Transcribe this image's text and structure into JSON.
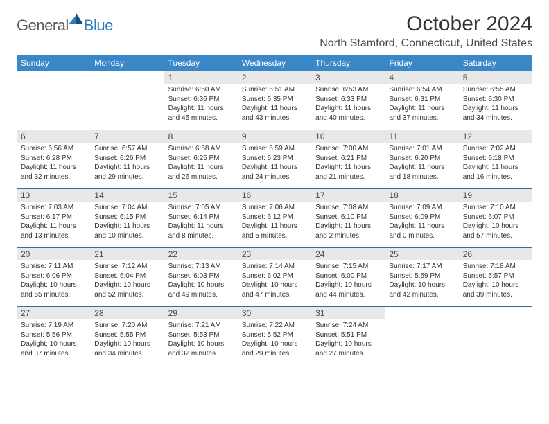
{
  "brand": {
    "word1": "General",
    "word2": "Blue"
  },
  "title": "October 2024",
  "location": "North Stamford, Connecticut, United States",
  "colors": {
    "header_bg": "#3a87c8",
    "header_text": "#ffffff",
    "daynum_bg": "#e8e8e8",
    "rule": "#3a6a95",
    "brand_gray": "#555b61",
    "brand_blue": "#2f7bbf",
    "body_text": "#333333"
  },
  "day_names": [
    "Sunday",
    "Monday",
    "Tuesday",
    "Wednesday",
    "Thursday",
    "Friday",
    "Saturday"
  ],
  "weeks": [
    [
      null,
      null,
      {
        "n": "1",
        "sr": "Sunrise: 6:50 AM",
        "ss": "Sunset: 6:36 PM",
        "dl": "Daylight: 11 hours and 45 minutes."
      },
      {
        "n": "2",
        "sr": "Sunrise: 6:51 AM",
        "ss": "Sunset: 6:35 PM",
        "dl": "Daylight: 11 hours and 43 minutes."
      },
      {
        "n": "3",
        "sr": "Sunrise: 6:53 AM",
        "ss": "Sunset: 6:33 PM",
        "dl": "Daylight: 11 hours and 40 minutes."
      },
      {
        "n": "4",
        "sr": "Sunrise: 6:54 AM",
        "ss": "Sunset: 6:31 PM",
        "dl": "Daylight: 11 hours and 37 minutes."
      },
      {
        "n": "5",
        "sr": "Sunrise: 6:55 AM",
        "ss": "Sunset: 6:30 PM",
        "dl": "Daylight: 11 hours and 34 minutes."
      }
    ],
    [
      {
        "n": "6",
        "sr": "Sunrise: 6:56 AM",
        "ss": "Sunset: 6:28 PM",
        "dl": "Daylight: 11 hours and 32 minutes."
      },
      {
        "n": "7",
        "sr": "Sunrise: 6:57 AM",
        "ss": "Sunset: 6:26 PM",
        "dl": "Daylight: 11 hours and 29 minutes."
      },
      {
        "n": "8",
        "sr": "Sunrise: 6:58 AM",
        "ss": "Sunset: 6:25 PM",
        "dl": "Daylight: 11 hours and 26 minutes."
      },
      {
        "n": "9",
        "sr": "Sunrise: 6:59 AM",
        "ss": "Sunset: 6:23 PM",
        "dl": "Daylight: 11 hours and 24 minutes."
      },
      {
        "n": "10",
        "sr": "Sunrise: 7:00 AM",
        "ss": "Sunset: 6:21 PM",
        "dl": "Daylight: 11 hours and 21 minutes."
      },
      {
        "n": "11",
        "sr": "Sunrise: 7:01 AM",
        "ss": "Sunset: 6:20 PM",
        "dl": "Daylight: 11 hours and 18 minutes."
      },
      {
        "n": "12",
        "sr": "Sunrise: 7:02 AM",
        "ss": "Sunset: 6:18 PM",
        "dl": "Daylight: 11 hours and 16 minutes."
      }
    ],
    [
      {
        "n": "13",
        "sr": "Sunrise: 7:03 AM",
        "ss": "Sunset: 6:17 PM",
        "dl": "Daylight: 11 hours and 13 minutes."
      },
      {
        "n": "14",
        "sr": "Sunrise: 7:04 AM",
        "ss": "Sunset: 6:15 PM",
        "dl": "Daylight: 11 hours and 10 minutes."
      },
      {
        "n": "15",
        "sr": "Sunrise: 7:05 AM",
        "ss": "Sunset: 6:14 PM",
        "dl": "Daylight: 11 hours and 8 minutes."
      },
      {
        "n": "16",
        "sr": "Sunrise: 7:06 AM",
        "ss": "Sunset: 6:12 PM",
        "dl": "Daylight: 11 hours and 5 minutes."
      },
      {
        "n": "17",
        "sr": "Sunrise: 7:08 AM",
        "ss": "Sunset: 6:10 PM",
        "dl": "Daylight: 11 hours and 2 minutes."
      },
      {
        "n": "18",
        "sr": "Sunrise: 7:09 AM",
        "ss": "Sunset: 6:09 PM",
        "dl": "Daylight: 11 hours and 0 minutes."
      },
      {
        "n": "19",
        "sr": "Sunrise: 7:10 AM",
        "ss": "Sunset: 6:07 PM",
        "dl": "Daylight: 10 hours and 57 minutes."
      }
    ],
    [
      {
        "n": "20",
        "sr": "Sunrise: 7:11 AM",
        "ss": "Sunset: 6:06 PM",
        "dl": "Daylight: 10 hours and 55 minutes."
      },
      {
        "n": "21",
        "sr": "Sunrise: 7:12 AM",
        "ss": "Sunset: 6:04 PM",
        "dl": "Daylight: 10 hours and 52 minutes."
      },
      {
        "n": "22",
        "sr": "Sunrise: 7:13 AM",
        "ss": "Sunset: 6:03 PM",
        "dl": "Daylight: 10 hours and 49 minutes."
      },
      {
        "n": "23",
        "sr": "Sunrise: 7:14 AM",
        "ss": "Sunset: 6:02 PM",
        "dl": "Daylight: 10 hours and 47 minutes."
      },
      {
        "n": "24",
        "sr": "Sunrise: 7:15 AM",
        "ss": "Sunset: 6:00 PM",
        "dl": "Daylight: 10 hours and 44 minutes."
      },
      {
        "n": "25",
        "sr": "Sunrise: 7:17 AM",
        "ss": "Sunset: 5:59 PM",
        "dl": "Daylight: 10 hours and 42 minutes."
      },
      {
        "n": "26",
        "sr": "Sunrise: 7:18 AM",
        "ss": "Sunset: 5:57 PM",
        "dl": "Daylight: 10 hours and 39 minutes."
      }
    ],
    [
      {
        "n": "27",
        "sr": "Sunrise: 7:19 AM",
        "ss": "Sunset: 5:56 PM",
        "dl": "Daylight: 10 hours and 37 minutes."
      },
      {
        "n": "28",
        "sr": "Sunrise: 7:20 AM",
        "ss": "Sunset: 5:55 PM",
        "dl": "Daylight: 10 hours and 34 minutes."
      },
      {
        "n": "29",
        "sr": "Sunrise: 7:21 AM",
        "ss": "Sunset: 5:53 PM",
        "dl": "Daylight: 10 hours and 32 minutes."
      },
      {
        "n": "30",
        "sr": "Sunrise: 7:22 AM",
        "ss": "Sunset: 5:52 PM",
        "dl": "Daylight: 10 hours and 29 minutes."
      },
      {
        "n": "31",
        "sr": "Sunrise: 7:24 AM",
        "ss": "Sunset: 5:51 PM",
        "dl": "Daylight: 10 hours and 27 minutes."
      },
      null,
      null
    ]
  ]
}
